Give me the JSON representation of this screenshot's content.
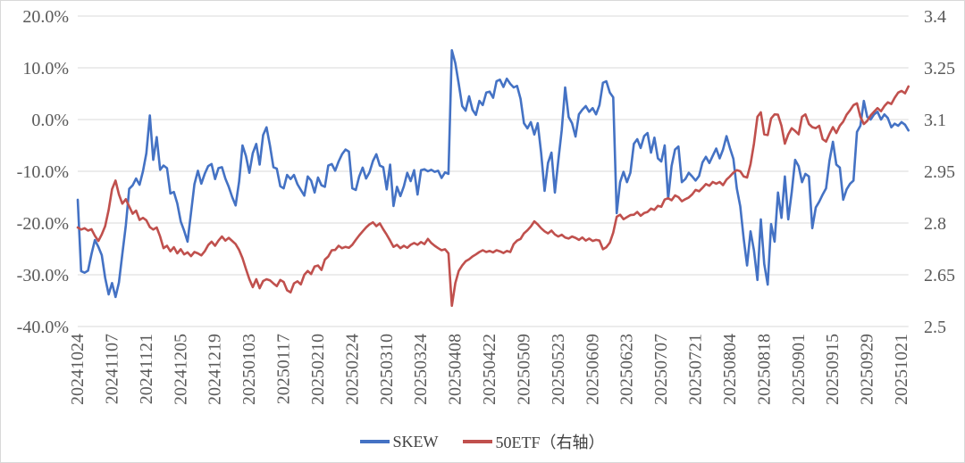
{
  "chart_data": {
    "type": "line",
    "title": "",
    "background": "#FFFFFF",
    "grid": true,
    "grid_color": "#D9D9D9",
    "frame_color": "#D9D9D9",
    "axis_text_color": "#595959",
    "legend_text_color": "#404040",
    "legend_position": "bottom-center",
    "x_label_every_n_points": 10,
    "x_labels": [
      "20241024",
      "20241107",
      "20241121",
      "20241205",
      "20241219",
      "20250103",
      "20250117",
      "20250210",
      "20250224",
      "20250310",
      "20250324",
      "20250408",
      "20250422",
      "20250509",
      "20250523",
      "20250609",
      "20250623",
      "20250707",
      "20250721",
      "20250804",
      "20250818",
      "20250901",
      "20250915",
      "20250929",
      "20251021"
    ],
    "left_axis": {
      "ticks": [
        "20.0%",
        "10.0%",
        "0.0%",
        "-10.0%",
        "-20.0%",
        "-30.0%",
        "-40.0%"
      ],
      "max": 20,
      "min": -40,
      "format": "percent"
    },
    "right_axis": {
      "ticks": [
        "3.4",
        "3.25",
        "3.1",
        "2.95",
        "2.8",
        "2.65",
        "2.5"
      ],
      "max": 3.4,
      "min": 2.5
    },
    "series": [
      {
        "name": "SKEW",
        "axis": "left",
        "color": "#4472C4",
        "unit": "%",
        "values": [
          -15.5,
          -29.3,
          -29.6,
          -29.2,
          -26.0,
          -23.3,
          -24.6,
          -26.2,
          -30.6,
          -33.8,
          -31.6,
          -34.3,
          -31.5,
          -26.0,
          -20.5,
          -13.4,
          -12.7,
          -11.4,
          -12.6,
          -10.0,
          -6.5,
          0.8,
          -7.8,
          -3.4,
          -9.7,
          -8.9,
          -9.4,
          -14.3,
          -14.0,
          -16.2,
          -19.7,
          -21.5,
          -23.6,
          -18.0,
          -12.5,
          -9.9,
          -12.4,
          -10.5,
          -9.0,
          -8.6,
          -11.5,
          -9.4,
          -9.2,
          -11.4,
          -13.0,
          -15.0,
          -16.6,
          -12.0,
          -5.0,
          -7.0,
          -10.3,
          -6.5,
          -4.7,
          -8.7,
          -3.0,
          -1.5,
          -5.0,
          -9.2,
          -9.5,
          -12.9,
          -13.3,
          -10.7,
          -11.5,
          -10.7,
          -12.5,
          -13.6,
          -14.7,
          -11.0,
          -11.8,
          -14.1,
          -11.2,
          -12.7,
          -13.0,
          -8.9,
          -8.6,
          -9.9,
          -8.1,
          -6.7,
          -5.8,
          -6.2,
          -13.3,
          -13.6,
          -11.0,
          -9.3,
          -11.4,
          -10.2,
          -8.0,
          -6.7,
          -8.9,
          -9.2,
          -13.5,
          -8.7,
          -16.7,
          -13.0,
          -14.8,
          -12.9,
          -10.3,
          -11.9,
          -9.8,
          -14.5,
          -9.8,
          -9.6,
          -10.0,
          -9.7,
          -10.1,
          -9.9,
          -11.3,
          -10.2,
          -10.5,
          13.4,
          10.9,
          6.9,
          2.6,
          1.7,
          4.5,
          1.9,
          0.9,
          3.6,
          2.8,
          5.2,
          5.4,
          4.2,
          7.4,
          7.7,
          6.3,
          7.9,
          6.9,
          6.2,
          6.5,
          4.0,
          -0.7,
          -1.7,
          -0.5,
          -2.9,
          -0.7,
          -6.4,
          -13.8,
          -8.4,
          -6.4,
          -14.1,
          -8.0,
          -2.0,
          6.2,
          0.5,
          -0.7,
          -3.3,
          1.0,
          1.9,
          2.6,
          1.5,
          2.2,
          1.0,
          2.8,
          7.1,
          7.4,
          5.2,
          4.3,
          -18.1,
          -12.1,
          -10.1,
          -12.1,
          -10.3,
          -4.7,
          -3.8,
          -5.5,
          -3.2,
          -2.6,
          -6.4,
          -3.5,
          -7.5,
          -8.1,
          -5.0,
          -15.3,
          -9.0,
          -5.8,
          -5.2,
          -12.1,
          -11.5,
          -10.3,
          -11.0,
          -11.8,
          -10.9,
          -8.3,
          -7.2,
          -8.4,
          -7.0,
          -5.6,
          -7.5,
          -5.8,
          -3.2,
          -5.5,
          -7.6,
          -13.3,
          -16.8,
          -23.0,
          -28.2,
          -21.6,
          -25.3,
          -31.0,
          -19.3,
          -27.9,
          -31.9,
          -20.2,
          -23.6,
          -14.1,
          -19.0,
          -11.0,
          -19.3,
          -14.0,
          -7.8,
          -9.0,
          -12.1,
          -10.5,
          -11.0,
          -21.0,
          -17.0,
          -15.9,
          -14.5,
          -13.3,
          -8.0,
          -4.3,
          -8.7,
          -9.3,
          -15.5,
          -13.5,
          -12.4,
          -11.8,
          -2.4,
          -1.2,
          3.6,
          0.5,
          0.0,
          1.0,
          1.5,
          0.0,
          1.0,
          0.3,
          -1.5,
          -0.8,
          -1.2,
          -0.5,
          -1.0,
          -2.1
        ]
      },
      {
        "name": "50ETF（右轴）",
        "axis": "right",
        "color": "#C0504D",
        "unit": "CNY",
        "values": [
          2.787,
          2.781,
          2.785,
          2.778,
          2.782,
          2.763,
          2.748,
          2.767,
          2.791,
          2.838,
          2.898,
          2.923,
          2.883,
          2.856,
          2.869,
          2.848,
          2.827,
          2.836,
          2.809,
          2.815,
          2.808,
          2.788,
          2.781,
          2.787,
          2.761,
          2.727,
          2.734,
          2.718,
          2.73,
          2.712,
          2.724,
          2.709,
          2.715,
          2.704,
          2.716,
          2.712,
          2.706,
          2.718,
          2.736,
          2.746,
          2.734,
          2.749,
          2.761,
          2.749,
          2.757,
          2.748,
          2.739,
          2.722,
          2.698,
          2.667,
          2.637,
          2.614,
          2.637,
          2.611,
          2.632,
          2.637,
          2.634,
          2.625,
          2.617,
          2.635,
          2.629,
          2.605,
          2.599,
          2.625,
          2.631,
          2.622,
          2.65,
          2.661,
          2.652,
          2.674,
          2.677,
          2.664,
          2.694,
          2.703,
          2.721,
          2.722,
          2.734,
          2.727,
          2.731,
          2.728,
          2.737,
          2.751,
          2.764,
          2.776,
          2.787,
          2.796,
          2.802,
          2.791,
          2.799,
          2.782,
          2.766,
          2.749,
          2.731,
          2.737,
          2.727,
          2.734,
          2.728,
          2.737,
          2.742,
          2.737,
          2.745,
          2.739,
          2.754,
          2.742,
          2.734,
          2.727,
          2.721,
          2.724,
          2.712,
          2.56,
          2.626,
          2.661,
          2.677,
          2.689,
          2.695,
          2.703,
          2.709,
          2.716,
          2.721,
          2.716,
          2.719,
          2.715,
          2.721,
          2.718,
          2.713,
          2.719,
          2.716,
          2.739,
          2.749,
          2.754,
          2.77,
          2.779,
          2.79,
          2.805,
          2.796,
          2.785,
          2.776,
          2.77,
          2.778,
          2.767,
          2.761,
          2.766,
          2.758,
          2.755,
          2.761,
          2.757,
          2.751,
          2.758,
          2.749,
          2.755,
          2.748,
          2.751,
          2.749,
          2.724,
          2.73,
          2.743,
          2.772,
          2.818,
          2.824,
          2.811,
          2.817,
          2.823,
          2.824,
          2.832,
          2.821,
          2.829,
          2.832,
          2.842,
          2.838,
          2.85,
          2.847,
          2.868,
          2.872,
          2.866,
          2.88,
          2.875,
          2.863,
          2.869,
          2.874,
          2.883,
          2.896,
          2.892,
          2.902,
          2.913,
          2.908,
          2.919,
          2.914,
          2.919,
          2.91,
          2.926,
          2.935,
          2.946,
          2.953,
          2.95,
          2.935,
          2.932,
          2.971,
          3.03,
          3.108,
          3.121,
          3.057,
          3.055,
          3.103,
          3.115,
          3.114,
          3.082,
          3.03,
          3.057,
          3.075,
          3.067,
          3.057,
          3.108,
          3.115,
          3.087,
          3.078,
          3.075,
          3.082,
          3.043,
          3.036,
          3.058,
          3.078,
          3.061,
          3.082,
          3.094,
          3.114,
          3.127,
          3.142,
          3.147,
          3.108,
          3.087,
          3.096,
          3.112,
          3.123,
          3.133,
          3.124,
          3.139,
          3.15,
          3.145,
          3.163,
          3.178,
          3.183,
          3.176,
          3.196
        ]
      }
    ]
  }
}
